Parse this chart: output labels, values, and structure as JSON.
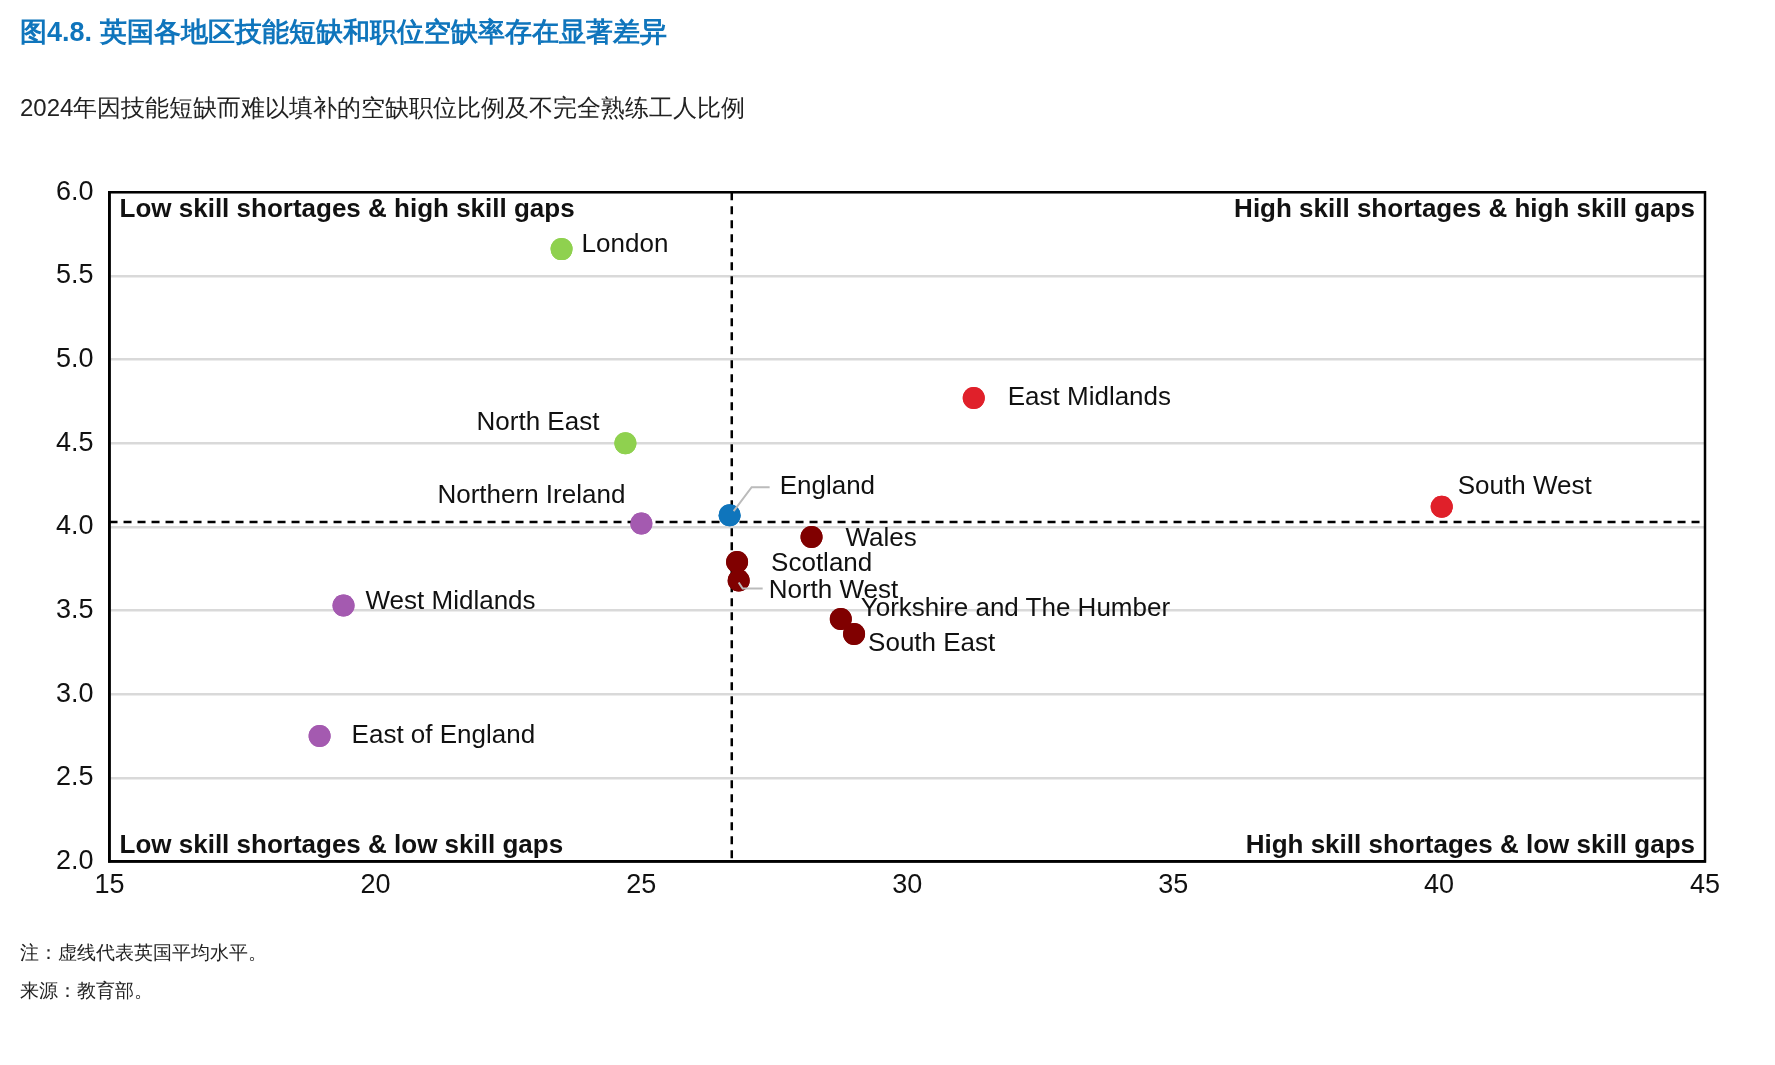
{
  "chart_data": {
    "type": "scatter",
    "title": "图4.8. 英国各地区技能短缺和职位空缺率存在显著差异",
    "subtitle": "2024年因技能短缺而难以填补的空缺职位比例及不完全熟练工人比例",
    "series": [
      {
        "name": "London",
        "color": "#8fd14f",
        "x": [
          23.5
        ],
        "values": [
          5.66
        ]
      },
      {
        "name": "North East",
        "color": "#8fd14f",
        "x": [
          24.7
        ],
        "values": [
          4.5
        ]
      },
      {
        "name": "Northern Ireland",
        "color": "#a45ab0",
        "x": [
          25.0
        ],
        "values": [
          4.02
        ]
      },
      {
        "name": "West Midlands",
        "color": "#a45ab0",
        "x": [
          19.4
        ],
        "values": [
          3.53
        ]
      },
      {
        "name": "East of England",
        "color": "#a45ab0",
        "x": [
          18.95
        ],
        "values": [
          2.75
        ]
      },
      {
        "name": "England",
        "color": "#0f75bc",
        "x": [
          26.66
        ],
        "values": [
          4.07
        ]
      },
      {
        "name": "Wales",
        "color": "#800000",
        "x": [
          28.2
        ],
        "values": [
          3.94
        ]
      },
      {
        "name": "Scotland",
        "color": "#800000",
        "x": [
          26.8
        ],
        "values": [
          3.79
        ]
      },
      {
        "name": "North West",
        "color": "#800000",
        "x": [
          26.83
        ],
        "values": [
          3.68
        ]
      },
      {
        "name": "Yorkshire and The Humber",
        "color": "#800000",
        "x": [
          28.75
        ],
        "values": [
          3.45
        ]
      },
      {
        "name": "South East",
        "color": "#800000",
        "x": [
          29.0
        ],
        "values": [
          3.36
        ]
      },
      {
        "name": "East Midlands",
        "color": "#e0202a",
        "x": [
          31.25
        ],
        "values": [
          4.77
        ]
      },
      {
        "name": "South West",
        "color": "#e0202a",
        "x": [
          40.05
        ],
        "values": [
          4.12
        ]
      }
    ],
    "xlim": [
      15,
      45
    ],
    "xticks": [
      15,
      20,
      25,
      30,
      35,
      40,
      45
    ],
    "ylim": [
      2,
      6
    ],
    "yticks": [
      {
        "value": 2,
        "label": "2.0"
      },
      {
        "value": 2.5,
        "label": "2.5"
      },
      {
        "value": 3,
        "label": "3.0"
      },
      {
        "value": 3.5,
        "label": "3.5"
      },
      {
        "value": 4,
        "label": "4.0"
      },
      {
        "value": 4.5,
        "label": "4.5"
      },
      {
        "value": 5,
        "label": "5.0"
      },
      {
        "value": 5.5,
        "label": "5.5"
      },
      {
        "value": 6,
        "label": "6.0"
      }
    ],
    "grid": "y",
    "marker": "circle",
    "legend": false,
    "ref_lines": [
      {
        "axis": "x",
        "value": 26.7,
        "line_style": "dashed",
        "color": "#000000"
      },
      {
        "axis": "y",
        "value": 4.03,
        "line_style": "dashed",
        "color": "#000000"
      }
    ],
    "annotations": [
      "Low skill shortages & high skill gaps",
      "High skill shortages & high skill gaps",
      "Low skill shortages & low skill gaps",
      "High skill shortages & low skill gaps",
      "注：虚线代表英国平均水平。",
      "来源：教育部。"
    ]
  }
}
